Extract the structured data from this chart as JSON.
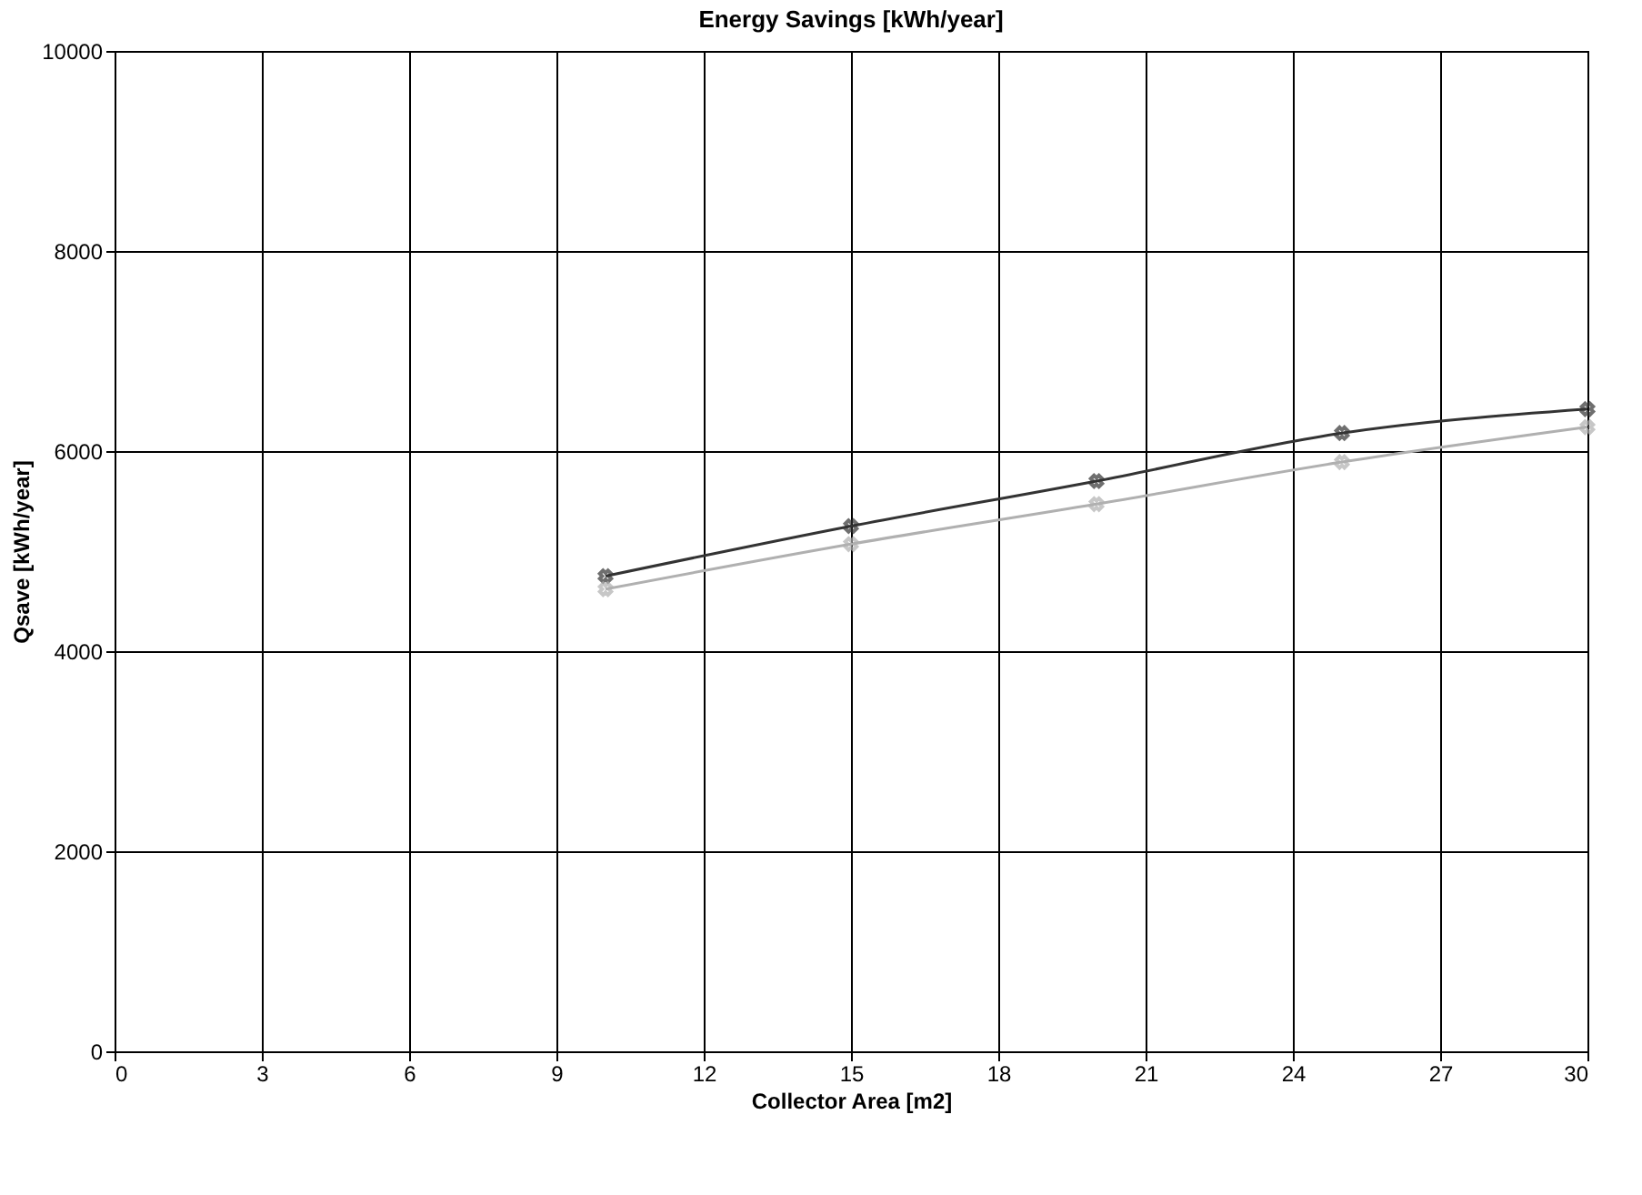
{
  "chart_data": {
    "type": "line",
    "title": "Energy Savings [kWh/year]",
    "xlabel": "Collector Area [m2]",
    "ylabel": "Qsave [kWh/year]",
    "x": [
      10,
      15,
      20,
      25,
      30
    ],
    "series": [
      {
        "color": "#333333",
        "values": [
          4750,
          5250,
          5700,
          6180,
          6420
        ]
      },
      {
        "color": "#b0b0b0",
        "values": [
          4620,
          5070,
          5470,
          5890,
          6240
        ]
      }
    ],
    "xlim": [
      0,
      30
    ],
    "xticks": [
      0,
      3,
      6,
      9,
      12,
      15,
      18,
      21,
      24,
      27,
      30
    ],
    "ylim": [
      0,
      10000
    ],
    "yticks": [
      0,
      2000,
      4000,
      6000,
      8000,
      10000
    ],
    "grid": true,
    "marker": "cross",
    "line_style": "solid"
  }
}
